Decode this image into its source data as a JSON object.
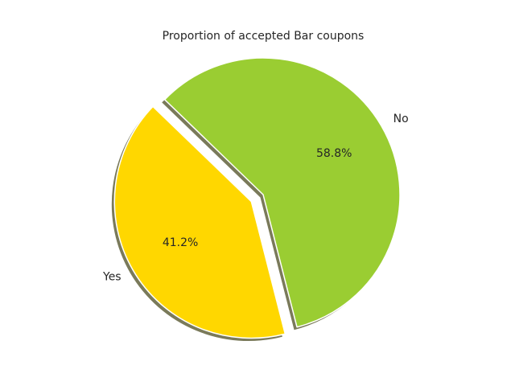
{
  "chart_data": {
    "type": "pie",
    "title": "Proportion of accepted Bar coupons",
    "slices": [
      {
        "label": "Yes",
        "value": 41.2,
        "pct_label": "41.2%",
        "color": "#FFD700",
        "explode": true
      },
      {
        "label": "No",
        "value": 58.8,
        "pct_label": "58.8%",
        "color": "#9ACD32",
        "explode": false
      }
    ],
    "shadow": true,
    "shadow_color": "#7a7a5a"
  }
}
